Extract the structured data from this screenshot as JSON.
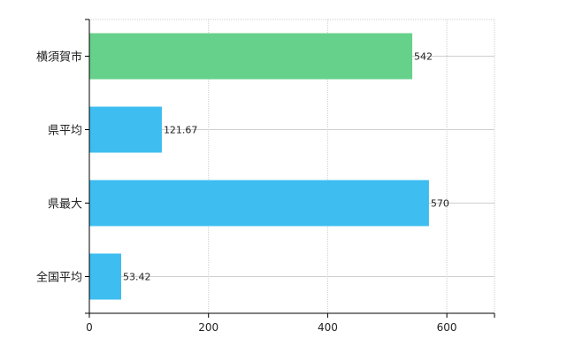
{
  "chart_data": {
    "type": "bar",
    "orientation": "horizontal",
    "categories": [
      "横須賀市",
      "県平均",
      "県最大",
      "全国平均"
    ],
    "values": [
      542,
      121.67,
      570,
      53.42
    ],
    "value_labels": [
      "542",
      "121.67",
      "570",
      "53.42"
    ],
    "colors": [
      "#66d18a",
      "#3dbdf0",
      "#3dbdf0",
      "#3dbdf0"
    ],
    "xlim": [
      0,
      680
    ],
    "x_ticks": [
      0,
      200,
      400,
      600
    ],
    "x_tick_labels": [
      "0",
      "200",
      "400",
      "600"
    ],
    "grid": true,
    "legend": "none"
  }
}
